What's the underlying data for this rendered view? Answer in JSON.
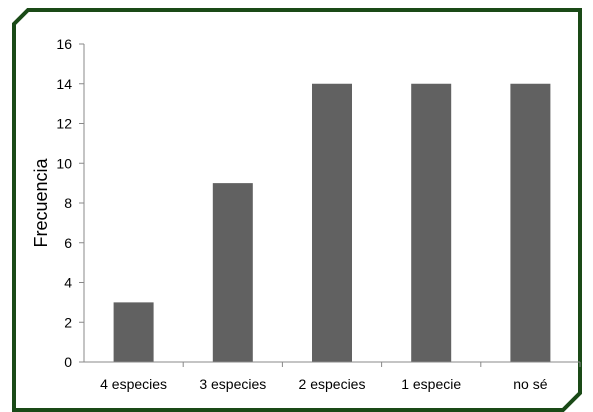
{
  "chart_data": {
    "type": "bar",
    "categories": [
      "4 especies",
      "3 especies",
      "2 especies",
      "1 especie",
      "no sé"
    ],
    "values": [
      3,
      9,
      14,
      14,
      14
    ],
    "title": "",
    "xlabel": "",
    "ylabel": "Frecuencia",
    "ylim": [
      0,
      16
    ],
    "yticks": [
      0,
      2,
      4,
      6,
      8,
      10,
      12,
      14,
      16
    ],
    "grid": false,
    "legend": "none",
    "bar_color": "#616161",
    "frame_color": "#1a4a17"
  }
}
